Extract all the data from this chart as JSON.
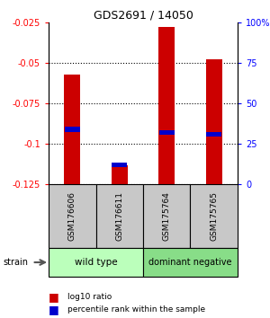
{
  "title": "GDS2691 / 14050",
  "samples": [
    "GSM176606",
    "GSM176611",
    "GSM175764",
    "GSM175765"
  ],
  "bar_bottom": -0.125,
  "red_bar_tops": [
    -0.057,
    -0.113,
    -0.028,
    -0.048
  ],
  "blue_marker_values": [
    -0.091,
    -0.113,
    -0.093,
    -0.094
  ],
  "ylim": [
    -0.125,
    -0.025
  ],
  "yticks_left": [
    -0.125,
    -0.1,
    -0.075,
    -0.05,
    -0.025
  ],
  "yticks_right_vals": [
    -0.125,
    -0.1,
    -0.075,
    -0.05,
    -0.025
  ],
  "yticks_right_labels": [
    "0",
    "25",
    "50",
    "75",
    "100%"
  ],
  "red_color": "#CC0000",
  "blue_color": "#0000CC",
  "bar_width": 0.35,
  "gray_bg": "#C8C8C8",
  "group1_label": "wild type",
  "group2_label": "dominant negative",
  "group1_color": "#BBFFBB",
  "group2_color": "#88DD88",
  "strain_label": "strain",
  "title_fontsize": 9,
  "tick_fontsize": 7,
  "label_fontsize": 6.5,
  "group_fontsize": 7.5
}
